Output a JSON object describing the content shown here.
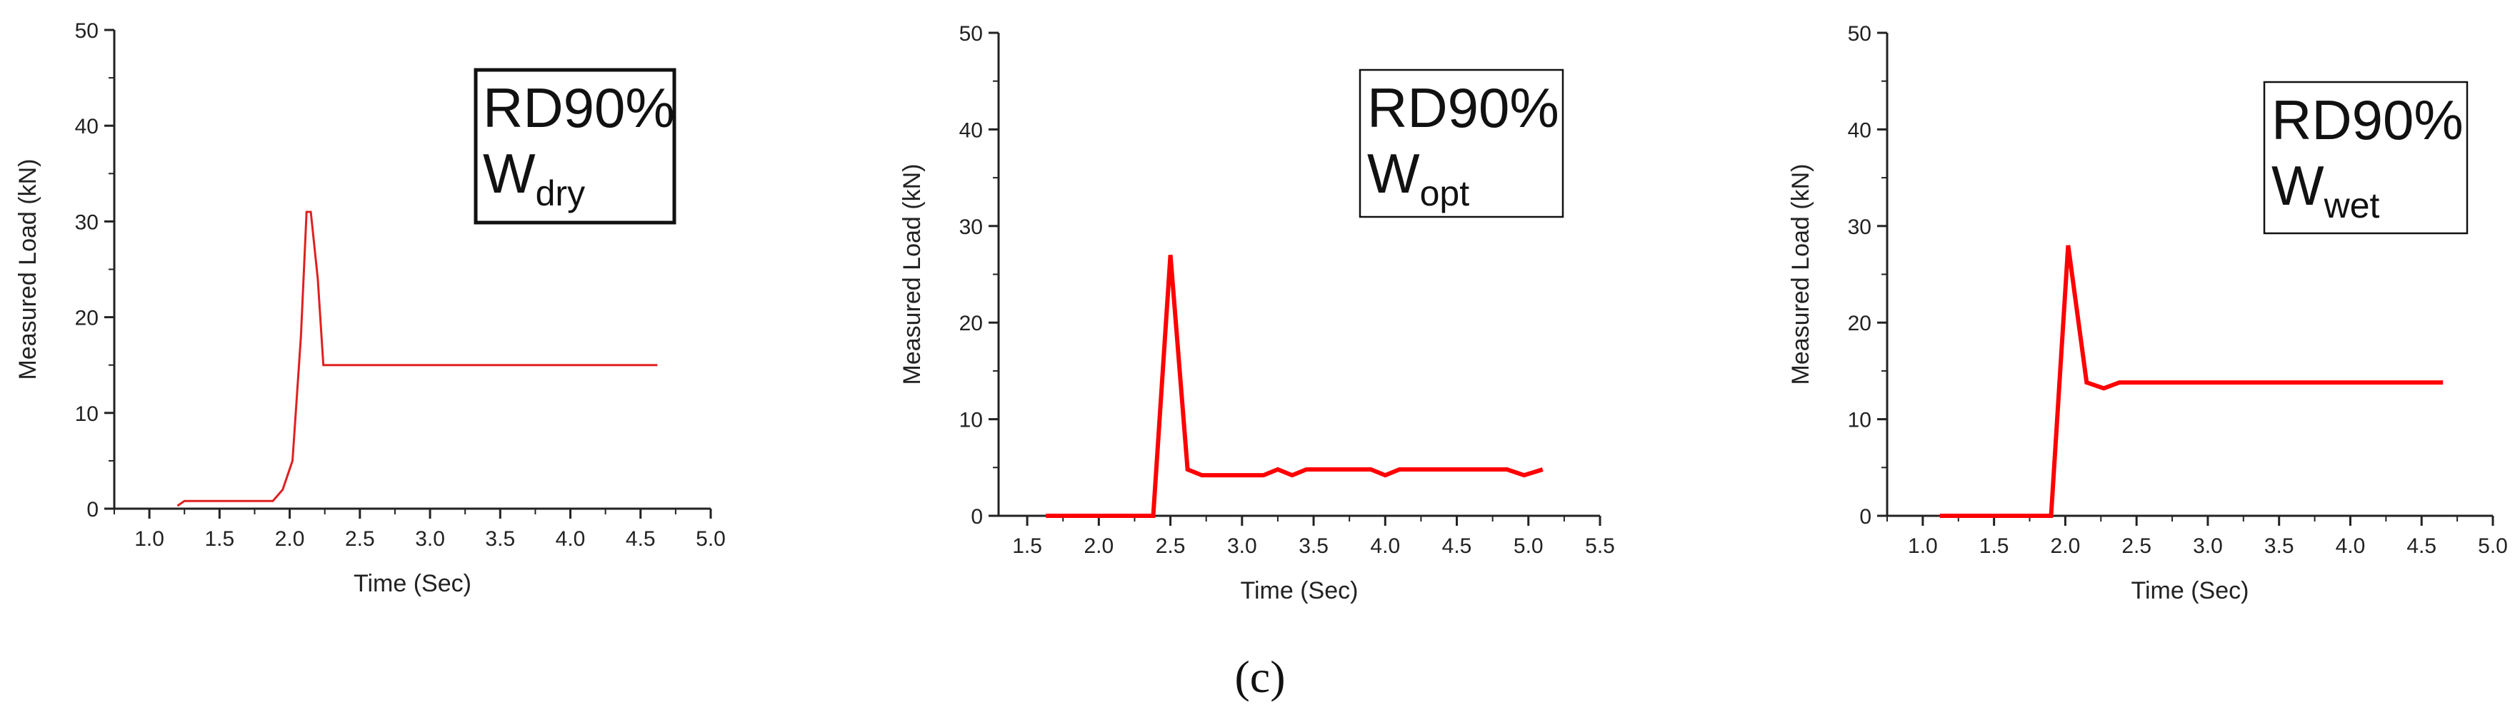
{
  "figure_caption": "(c)",
  "chart_data": [
    {
      "type": "line",
      "color": "#e02020",
      "xlabel": "Time (Sec)",
      "ylabel": "Measured Load (kN)",
      "xlim": [
        0.75,
        5.0
      ],
      "ylim": [
        0,
        50
      ],
      "x_ticks": [
        1.0,
        1.5,
        2.0,
        2.5,
        3.0,
        3.5,
        4.0,
        4.5,
        5.0
      ],
      "y_ticks": [
        0,
        10,
        20,
        30,
        40,
        50
      ],
      "annotation": {
        "main": "RD90%",
        "base": "W",
        "sub": "dry"
      },
      "series": [
        {
          "name": "RD90% Wdry",
          "x": [
            1.2,
            1.25,
            1.88,
            1.95,
            2.02,
            2.08,
            2.12,
            2.15,
            2.2,
            2.24,
            4.62
          ],
          "y": [
            0.3,
            0.8,
            0.8,
            2.0,
            5.0,
            18.0,
            31.0,
            31.0,
            24.0,
            15.0,
            15.0
          ]
        }
      ]
    },
    {
      "type": "line",
      "color": "#ff0000",
      "xlabel": "Time (Sec)",
      "ylabel": "Measured Load (kN)",
      "xlim": [
        1.3,
        5.5
      ],
      "ylim": [
        0,
        50
      ],
      "x_ticks": [
        1.5,
        2.0,
        2.5,
        3.0,
        3.5,
        4.0,
        4.5,
        5.0,
        5.5
      ],
      "y_ticks": [
        0,
        10,
        20,
        30,
        40,
        50
      ],
      "annotation": {
        "main": "RD90%",
        "base": "W",
        "sub": "opt"
      },
      "series": [
        {
          "name": "RD90% Wopt",
          "x": [
            1.63,
            2.38,
            2.5,
            2.62,
            2.72,
            3.15,
            3.25,
            3.35,
            3.45,
            3.9,
            4.0,
            4.1,
            4.85,
            4.97,
            5.1
          ],
          "y": [
            0.0,
            0.0,
            27.0,
            4.8,
            4.2,
            4.2,
            4.8,
            4.2,
            4.8,
            4.8,
            4.2,
            4.8,
            4.8,
            4.2,
            4.8
          ]
        }
      ]
    },
    {
      "type": "line",
      "color": "#ff0000",
      "xlabel": "Time (Sec)",
      "ylabel": "Measured Load (kN)",
      "xlim": [
        0.75,
        5.0
      ],
      "ylim": [
        0,
        50
      ],
      "x_ticks": [
        1.0,
        1.5,
        2.0,
        2.5,
        3.0,
        3.5,
        4.0,
        4.5,
        5.0
      ],
      "y_ticks": [
        0,
        10,
        20,
        30,
        40,
        50
      ],
      "annotation": {
        "main": "RD90%",
        "base": "W",
        "sub": "wet"
      },
      "series": [
        {
          "name": "RD90% Wwet",
          "x": [
            1.12,
            1.9,
            2.02,
            2.15,
            2.27,
            2.38,
            4.65
          ],
          "y": [
            0.0,
            0.0,
            28.0,
            13.8,
            13.2,
            13.8,
            13.8
          ]
        }
      ]
    }
  ]
}
